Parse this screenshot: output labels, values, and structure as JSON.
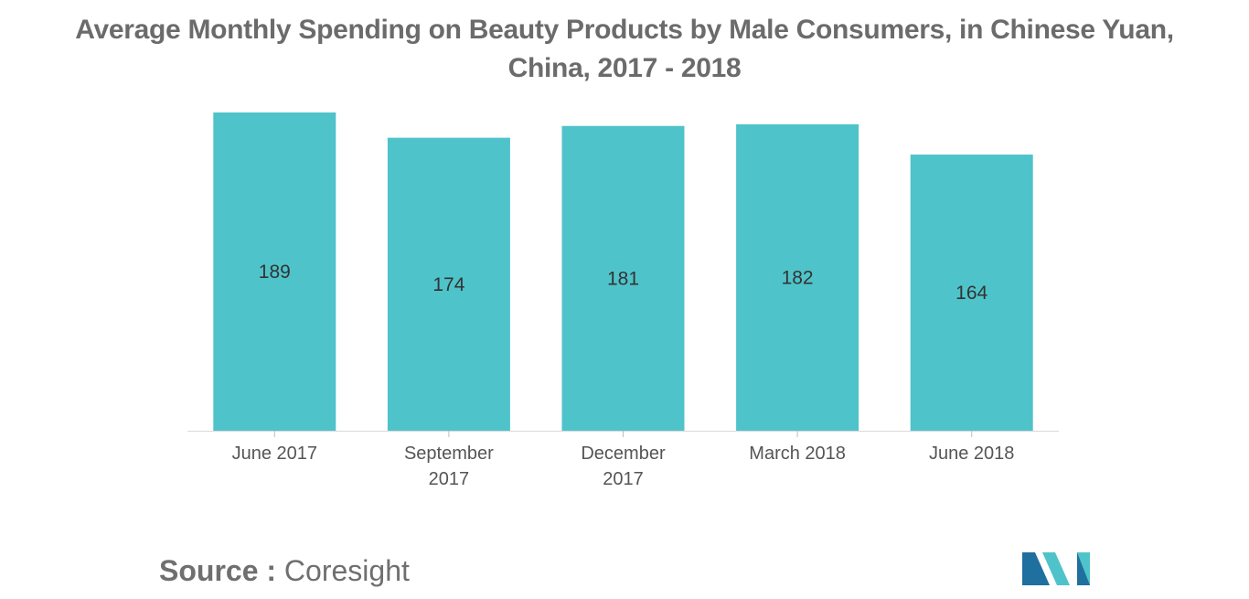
{
  "chart_data": {
    "type": "bar",
    "title": "Average Monthly Spending on Beauty Products by Male Consumers, in Chinese Yuan,",
    "subtitle": "China, 2017 - 2018",
    "categories": [
      "June 2017",
      "September 2017",
      "December 2017",
      "March 2018",
      "June 2018"
    ],
    "values": [
      189,
      174,
      181,
      182,
      164
    ],
    "xlabel": "",
    "ylabel": "",
    "ylim": [
      0,
      189
    ],
    "grid": false,
    "legend": "none",
    "bar_color": "#4fc3ca",
    "data_labels": "inside-center"
  },
  "source": {
    "label": "Source :",
    "value": "Coresight"
  },
  "logo": {
    "icon": "mordor-intelligence-logo-icon",
    "colors": [
      "#1f6f9f",
      "#4fc3ca"
    ]
  }
}
